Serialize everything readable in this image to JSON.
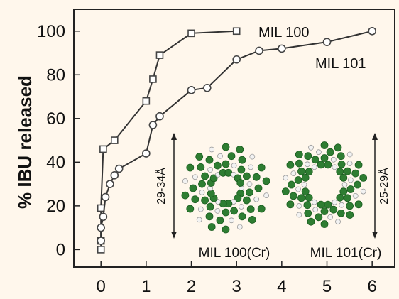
{
  "chart_data": {
    "type": "line",
    "ylabel": "% IBU released",
    "xlim": [
      -0.6,
      6.5
    ],
    "ylim": [
      -8,
      110
    ],
    "xticks": [
      0,
      1,
      2,
      3,
      4,
      5,
      6
    ],
    "yticks": [
      0,
      20,
      40,
      60,
      80,
      100
    ],
    "grid": false,
    "series": [
      {
        "name": "MIL 100",
        "marker": "square",
        "x": [
          0,
          0,
          0,
          0.05,
          0.3,
          1,
          1.15,
          1.3,
          2,
          3
        ],
        "y": [
          0,
          4,
          19,
          46,
          50,
          68,
          78,
          89,
          99,
          100
        ]
      },
      {
        "name": "MIL 101",
        "marker": "circle",
        "x": [
          0,
          0,
          0.05,
          0.1,
          0.2,
          0.3,
          0.4,
          1,
          1.15,
          1.3,
          2,
          2.35,
          3,
          3.5,
          4,
          5,
          6
        ],
        "y": [
          4,
          10,
          15,
          24,
          30,
          34,
          37,
          44,
          57,
          61,
          73,
          74,
          87,
          91,
          92,
          95,
          100
        ]
      }
    ],
    "insets": [
      {
        "name": "MIL 100(Cr)",
        "dimension": "29-34Å"
      },
      {
        "name": "MIL 101(Cr)",
        "dimension": "25-29Å"
      }
    ],
    "colors": {
      "line": "#333333",
      "background": "#fff7ec",
      "structure_green": "#2e7d32"
    }
  }
}
